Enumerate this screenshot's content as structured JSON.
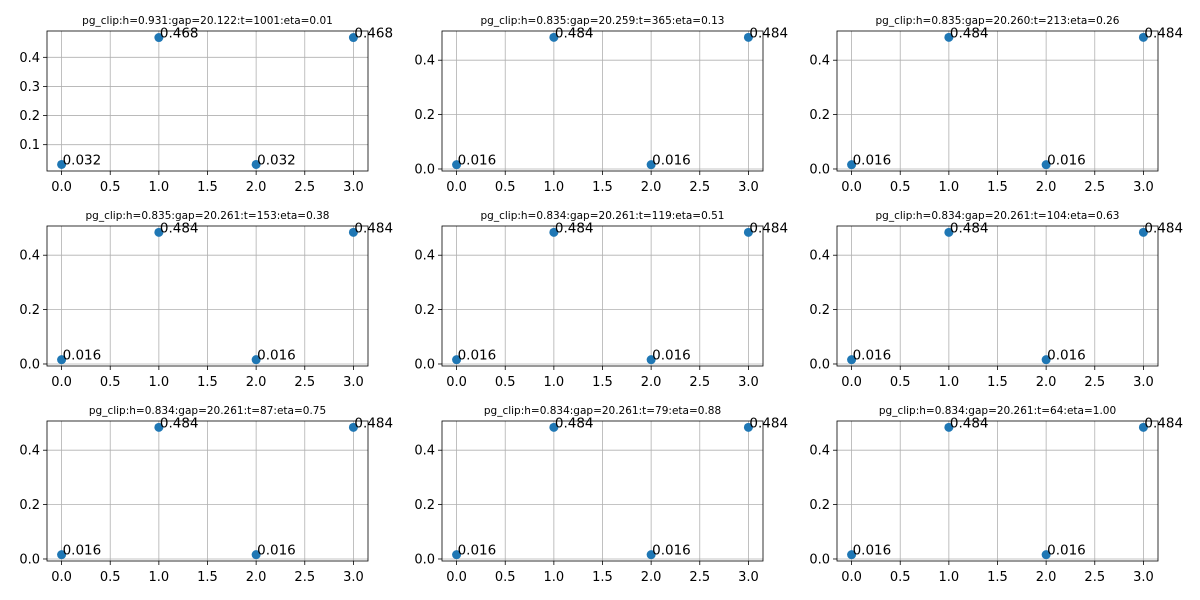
{
  "chart_data": [
    {
      "type": "scatter",
      "title": "pg_clip:h=0.931:gap=20.122:t=1001:eta=0.01",
      "x": [
        0,
        1,
        2,
        3
      ],
      "y": [
        0.032,
        0.468,
        0.032,
        0.468
      ],
      "point_labels": [
        "0.032",
        "0.468",
        "0.032",
        "0.468"
      ],
      "xlim": [
        -0.15,
        3.15
      ],
      "ylim": [
        0.0096,
        0.4904
      ],
      "xticks": [
        0,
        0.5,
        1,
        1.5,
        2,
        2.5,
        3
      ],
      "xtick_labels": [
        "0.0",
        "0.5",
        "1.0",
        "1.5",
        "2.0",
        "2.5",
        "3.0"
      ],
      "yticks": [
        0.1,
        0.2,
        0.3,
        0.4
      ],
      "ytick_labels": [
        "0.1",
        "0.2",
        "0.3",
        "0.4"
      ],
      "grid": true,
      "marker_color": "#1f77b4"
    },
    {
      "type": "scatter",
      "title": "pg_clip:h=0.835:gap=20.259:t=365:eta=0.13",
      "x": [
        0,
        1,
        2,
        3
      ],
      "y": [
        0.016,
        0.484,
        0.016,
        0.484
      ],
      "point_labels": [
        "0.016",
        "0.484",
        "0.016",
        "0.484"
      ],
      "xlim": [
        -0.15,
        3.15
      ],
      "ylim": [
        -0.0074,
        0.5074
      ],
      "xticks": [
        0,
        0.5,
        1,
        1.5,
        2,
        2.5,
        3
      ],
      "xtick_labels": [
        "0.0",
        "0.5",
        "1.0",
        "1.5",
        "2.0",
        "2.5",
        "3.0"
      ],
      "yticks": [
        0,
        0.2,
        0.4
      ],
      "ytick_labels": [
        "0.0",
        "0.2",
        "0.4"
      ],
      "grid": true,
      "marker_color": "#1f77b4"
    },
    {
      "type": "scatter",
      "title": "pg_clip:h=0.835:gap=20.260:t=213:eta=0.26",
      "x": [
        0,
        1,
        2,
        3
      ],
      "y": [
        0.016,
        0.484,
        0.016,
        0.484
      ],
      "point_labels": [
        "0.016",
        "0.484",
        "0.016",
        "0.484"
      ],
      "xlim": [
        -0.15,
        3.15
      ],
      "ylim": [
        -0.0074,
        0.5074
      ],
      "xticks": [
        0,
        0.5,
        1,
        1.5,
        2,
        2.5,
        3
      ],
      "xtick_labels": [
        "0.0",
        "0.5",
        "1.0",
        "1.5",
        "2.0",
        "2.5",
        "3.0"
      ],
      "yticks": [
        0,
        0.2,
        0.4
      ],
      "ytick_labels": [
        "0.0",
        "0.2",
        "0.4"
      ],
      "grid": true,
      "marker_color": "#1f77b4"
    },
    {
      "type": "scatter",
      "title": "pg_clip:h=0.835:gap=20.261:t=153:eta=0.38",
      "x": [
        0,
        1,
        2,
        3
      ],
      "y": [
        0.016,
        0.484,
        0.016,
        0.484
      ],
      "point_labels": [
        "0.016",
        "0.484",
        "0.016",
        "0.484"
      ],
      "xlim": [
        -0.15,
        3.15
      ],
      "ylim": [
        -0.0074,
        0.5074
      ],
      "xticks": [
        0,
        0.5,
        1,
        1.5,
        2,
        2.5,
        3
      ],
      "xtick_labels": [
        "0.0",
        "0.5",
        "1.0",
        "1.5",
        "2.0",
        "2.5",
        "3.0"
      ],
      "yticks": [
        0,
        0.2,
        0.4
      ],
      "ytick_labels": [
        "0.0",
        "0.2",
        "0.4"
      ],
      "grid": true,
      "marker_color": "#1f77b4"
    },
    {
      "type": "scatter",
      "title": "pg_clip:h=0.834:gap=20.261:t=119:eta=0.51",
      "x": [
        0,
        1,
        2,
        3
      ],
      "y": [
        0.016,
        0.484,
        0.016,
        0.484
      ],
      "point_labels": [
        "0.016",
        "0.484",
        "0.016",
        "0.484"
      ],
      "xlim": [
        -0.15,
        3.15
      ],
      "ylim": [
        -0.0074,
        0.5074
      ],
      "xticks": [
        0,
        0.5,
        1,
        1.5,
        2,
        2.5,
        3
      ],
      "xtick_labels": [
        "0.0",
        "0.5",
        "1.0",
        "1.5",
        "2.0",
        "2.5",
        "3.0"
      ],
      "yticks": [
        0,
        0.2,
        0.4
      ],
      "ytick_labels": [
        "0.0",
        "0.2",
        "0.4"
      ],
      "grid": true,
      "marker_color": "#1f77b4"
    },
    {
      "type": "scatter",
      "title": "pg_clip:h=0.834:gap=20.261:t=104:eta=0.63",
      "x": [
        0,
        1,
        2,
        3
      ],
      "y": [
        0.016,
        0.484,
        0.016,
        0.484
      ],
      "point_labels": [
        "0.016",
        "0.484",
        "0.016",
        "0.484"
      ],
      "xlim": [
        -0.15,
        3.15
      ],
      "ylim": [
        -0.0074,
        0.5074
      ],
      "xticks": [
        0,
        0.5,
        1,
        1.5,
        2,
        2.5,
        3
      ],
      "xtick_labels": [
        "0.0",
        "0.5",
        "1.0",
        "1.5",
        "2.0",
        "2.5",
        "3.0"
      ],
      "yticks": [
        0,
        0.2,
        0.4
      ],
      "ytick_labels": [
        "0.0",
        "0.2",
        "0.4"
      ],
      "grid": true,
      "marker_color": "#1f77b4"
    },
    {
      "type": "scatter",
      "title": "pg_clip:h=0.834:gap=20.261:t=87:eta=0.75",
      "x": [
        0,
        1,
        2,
        3
      ],
      "y": [
        0.016,
        0.484,
        0.016,
        0.484
      ],
      "point_labels": [
        "0.016",
        "0.484",
        "0.016",
        "0.484"
      ],
      "xlim": [
        -0.15,
        3.15
      ],
      "ylim": [
        -0.0074,
        0.5074
      ],
      "xticks": [
        0,
        0.5,
        1,
        1.5,
        2,
        2.5,
        3
      ],
      "xtick_labels": [
        "0.0",
        "0.5",
        "1.0",
        "1.5",
        "2.0",
        "2.5",
        "3.0"
      ],
      "yticks": [
        0,
        0.2,
        0.4
      ],
      "ytick_labels": [
        "0.0",
        "0.2",
        "0.4"
      ],
      "grid": true,
      "marker_color": "#1f77b4"
    },
    {
      "type": "scatter",
      "title": "pg_clip:h=0.834:gap=20.261:t=79:eta=0.88",
      "x": [
        0,
        1,
        2,
        3
      ],
      "y": [
        0.016,
        0.484,
        0.016,
        0.484
      ],
      "point_labels": [
        "0.016",
        "0.484",
        "0.016",
        "0.484"
      ],
      "xlim": [
        -0.15,
        3.15
      ],
      "ylim": [
        -0.0074,
        0.5074
      ],
      "xticks": [
        0,
        0.5,
        1,
        1.5,
        2,
        2.5,
        3
      ],
      "xtick_labels": [
        "0.0",
        "0.5",
        "1.0",
        "1.5",
        "2.0",
        "2.5",
        "3.0"
      ],
      "yticks": [
        0,
        0.2,
        0.4
      ],
      "ytick_labels": [
        "0.0",
        "0.2",
        "0.4"
      ],
      "grid": true,
      "marker_color": "#1f77b4"
    },
    {
      "type": "scatter",
      "title": "pg_clip:h=0.834:gap=20.261:t=64:eta=1.00",
      "x": [
        0,
        1,
        2,
        3
      ],
      "y": [
        0.016,
        0.484,
        0.016,
        0.484
      ],
      "point_labels": [
        "0.016",
        "0.484",
        "0.016",
        "0.484"
      ],
      "xlim": [
        -0.15,
        3.15
      ],
      "ylim": [
        -0.0074,
        0.5074
      ],
      "xticks": [
        0,
        0.5,
        1,
        1.5,
        2,
        2.5,
        3
      ],
      "xtick_labels": [
        "0.0",
        "0.5",
        "1.0",
        "1.5",
        "2.0",
        "2.5",
        "3.0"
      ],
      "yticks": [
        0,
        0.2,
        0.4
      ],
      "ytick_labels": [
        "0.0",
        "0.2",
        "0.4"
      ],
      "grid": true,
      "marker_color": "#1f77b4"
    }
  ]
}
